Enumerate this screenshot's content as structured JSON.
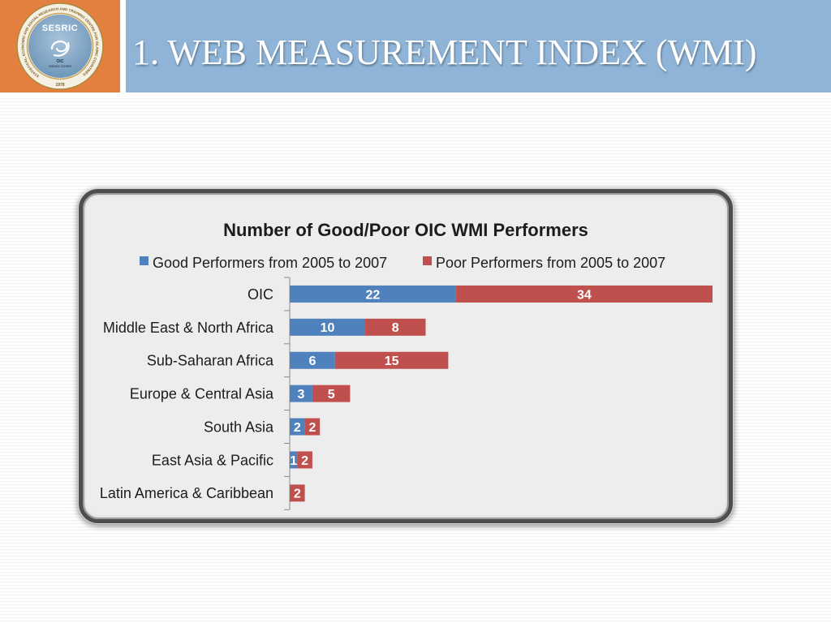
{
  "slide": {
    "title": "1. WEB MEASUREMENT INDEX (WMI)",
    "colors": {
      "logo_box": "#e4803f",
      "title_band": "#8fb4d7"
    }
  },
  "logo": {
    "name": "SESRIC",
    "ring_text": "STATISTICAL, ECONOMIC AND SOCIAL RESEARCH AND TRAINING CENTRE FOR ISLAMIC COUNTRIES",
    "year": "1978",
    "center_line1": "OIC",
    "center_line2": "Ankara Centre",
    "emblem_icon": "sesric-emblem-icon"
  },
  "chart_data": {
    "type": "bar",
    "orientation": "horizontal",
    "stacked": true,
    "title": "Number of Good/Poor OIC WMI Performers",
    "xlabel": "",
    "ylabel": "",
    "categories": [
      "OIC",
      "Middle East & North Africa",
      "Sub-Saharan Africa",
      "Europe & Central Asia",
      "South Asia",
      "East Asia & Pacific",
      "Latin America & Caribbean"
    ],
    "series": [
      {
        "name": "Good Performers from 2005 to 2007",
        "color": "#4f81bd",
        "values": [
          22,
          10,
          6,
          3,
          2,
          1,
          0
        ]
      },
      {
        "name": "Poor Performers from 2005 to 2007",
        "color": "#c0504d",
        "values": [
          34,
          8,
          15,
          5,
          2,
          2,
          2
        ]
      }
    ],
    "xlim": [
      0,
      56
    ],
    "legend": "top",
    "grid": false,
    "data_labels": true,
    "x_axis_visible": false
  }
}
